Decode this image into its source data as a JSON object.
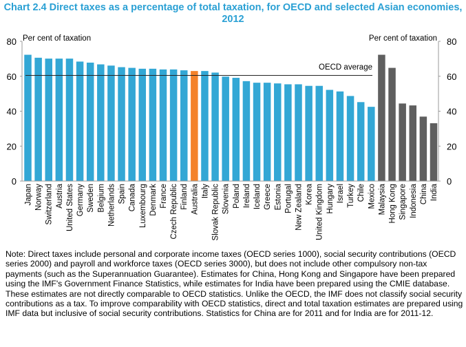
{
  "chart_data": {
    "type": "bar",
    "title": "Chart 2.4 Direct taxes as a percentage of total taxation, for OECD and selected Asian economies, 2012",
    "ylabel_left": "Per cent of taxation",
    "ylabel_right": "Per cent of taxation",
    "ylim": [
      0,
      80
    ],
    "yticks": [
      0,
      20,
      40,
      60,
      80
    ],
    "grid": false,
    "categories": [
      "Japan",
      "Norway",
      "Switzerland",
      "Austria",
      "United States",
      "Germany",
      "Sweden",
      "Belgium",
      "Netherlands",
      "Spain",
      "Canada",
      "Luxembourg",
      "Denmark",
      "France",
      "Czech Republic",
      "Finland",
      "Australia",
      "Italy",
      "Slovak Republic",
      "Slovenia",
      "Poland",
      "Ireland",
      "Iceland",
      "Greece",
      "Estonia",
      "Portugal",
      "New Zealand",
      "Korea",
      "United Kingdom",
      "Hungary",
      "Israel",
      "Turkey",
      "Chile",
      "Mexico",
      "Malaysia",
      "Hong Kong",
      "Singapore",
      "Indonesia",
      "China",
      "India"
    ],
    "values": [
      72.3,
      70.6,
      70.1,
      70.1,
      70.1,
      68.4,
      67.8,
      66.8,
      66.1,
      65.2,
      64.8,
      64.3,
      64.3,
      63.9,
      63.9,
      63.4,
      63.0,
      63.0,
      62.1,
      59.8,
      59.1,
      57.2,
      56.3,
      56.3,
      55.9,
      55.4,
      55.4,
      54.5,
      54.5,
      52.2,
      51.3,
      48.7,
      45.2,
      42.5,
      72.3,
      64.8,
      44.4,
      43.3,
      36.9,
      33.1
    ],
    "groups": [
      "oecd",
      "oecd",
      "oecd",
      "oecd",
      "oecd",
      "oecd",
      "oecd",
      "oecd",
      "oecd",
      "oecd",
      "oecd",
      "oecd",
      "oecd",
      "oecd",
      "oecd",
      "oecd",
      "australia",
      "oecd",
      "oecd",
      "oecd",
      "oecd",
      "oecd",
      "oecd",
      "oecd",
      "oecd",
      "oecd",
      "oecd",
      "oecd",
      "oecd",
      "oecd",
      "oecd",
      "oecd",
      "oecd",
      "oecd",
      "asia",
      "asia",
      "asia",
      "asia",
      "asia",
      "asia"
    ],
    "colors": {
      "oecd": "#33a7d5",
      "australia": "#f4822a",
      "asia": "#5f5f5f"
    },
    "reference_line": {
      "label": "OECD average",
      "value": 60.5
    }
  },
  "note": "Note:  Direct taxes include personal and corporate income taxes (OECD series 1000), social security contributions (OECD series 2000) and payroll and workforce taxes (OECD series 3000), but does not include other compulsory non-tax payments (such as the Superannuation Guarantee). Estimates for China, Hong Kong and Singapore have been prepared using the IMF's Government Finance Statistics, while estimates for India have been prepared using the CMIE database. These estimates are not directly comparable to OECD statistics. Unlike the OECD, the IMF does not classify social security contributions as a tax. To improve comparability with OECD statistics, direct and total taxation estimates are prepared using IMF data but inclusive of social security contributions. Statistics for China are for 2011 and for India are for 2011-12."
}
